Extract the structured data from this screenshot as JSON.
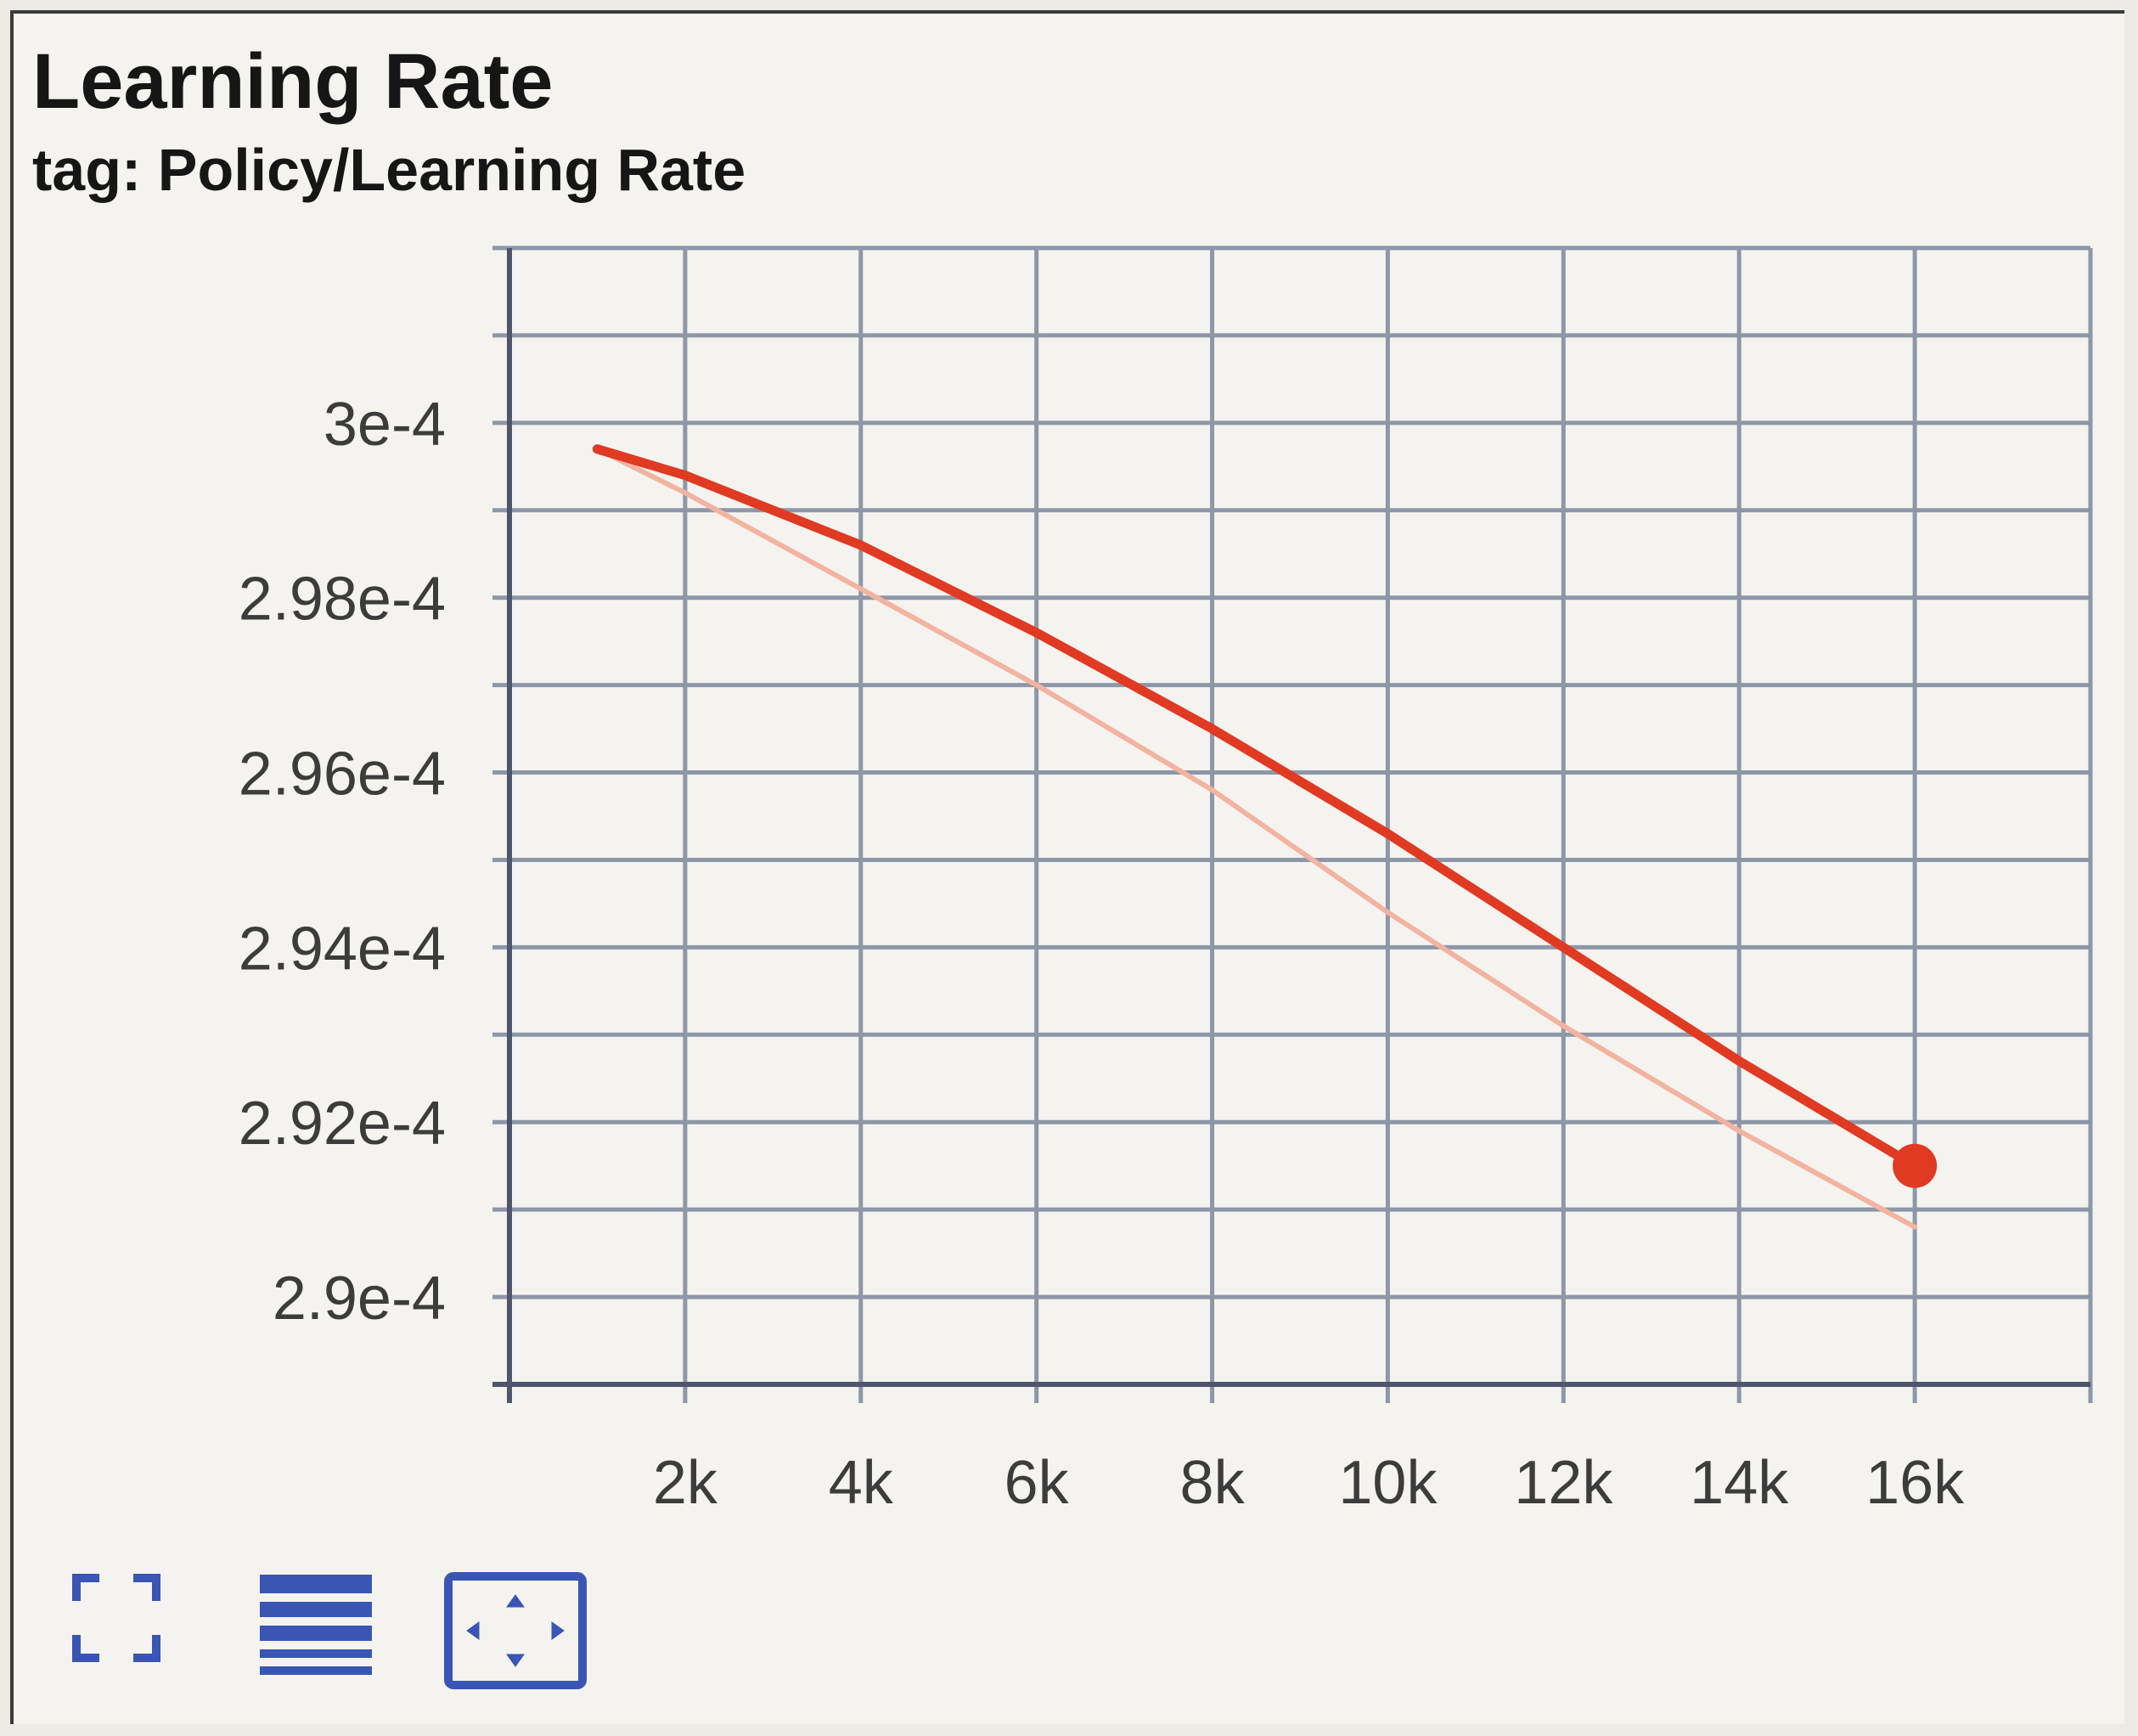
{
  "card": {
    "title": "Learning Rate",
    "subtitle": "tag: Policy/Learning Rate"
  },
  "toolbar": {
    "buttons": [
      {
        "icon": "fullscreen-icon"
      },
      {
        "icon": "log-scale-icon"
      },
      {
        "icon": "fit-domain-icon"
      }
    ],
    "icon_color": "#3a55b4"
  },
  "chart_data": {
    "type": "line",
    "x": [
      1000,
      2000,
      4000,
      6000,
      8000,
      10000,
      12000,
      14000,
      16000
    ],
    "x_ticks": [
      "2k",
      "4k",
      "6k",
      "8k",
      "10k",
      "12k",
      "14k",
      "16k"
    ],
    "x_tick_values": [
      2000,
      4000,
      6000,
      8000,
      10000,
      12000,
      14000,
      16000
    ],
    "y_ticks": [
      "3e-4",
      "2.98e-4",
      "2.96e-4",
      "2.94e-4",
      "2.92e-4",
      "2.9e-4"
    ],
    "y_tick_values": [
      0.0003,
      0.000298,
      0.000296,
      0.000294,
      0.000292,
      0.00029
    ],
    "xlim": [
      0,
      18000
    ],
    "ylim": [
      0.000289,
      0.000302
    ],
    "grid": true,
    "series": [
      {
        "role": "smoothed",
        "color": "#e03a22",
        "values": [
          0.0002997,
          0.0002994,
          0.0002986,
          0.0002976,
          0.0002965,
          0.0002953,
          0.000294,
          0.0002927,
          0.0002915
        ]
      },
      {
        "role": "raw",
        "color": "#f2b3a0",
        "values": [
          0.0002997,
          0.0002992,
          0.0002981,
          0.000297,
          0.0002958,
          0.0002944,
          0.0002931,
          0.0002919,
          0.0002908
        ]
      }
    ],
    "highlight_point": {
      "x": 16000,
      "y": 0.0002915,
      "color": "#e03a22"
    }
  }
}
